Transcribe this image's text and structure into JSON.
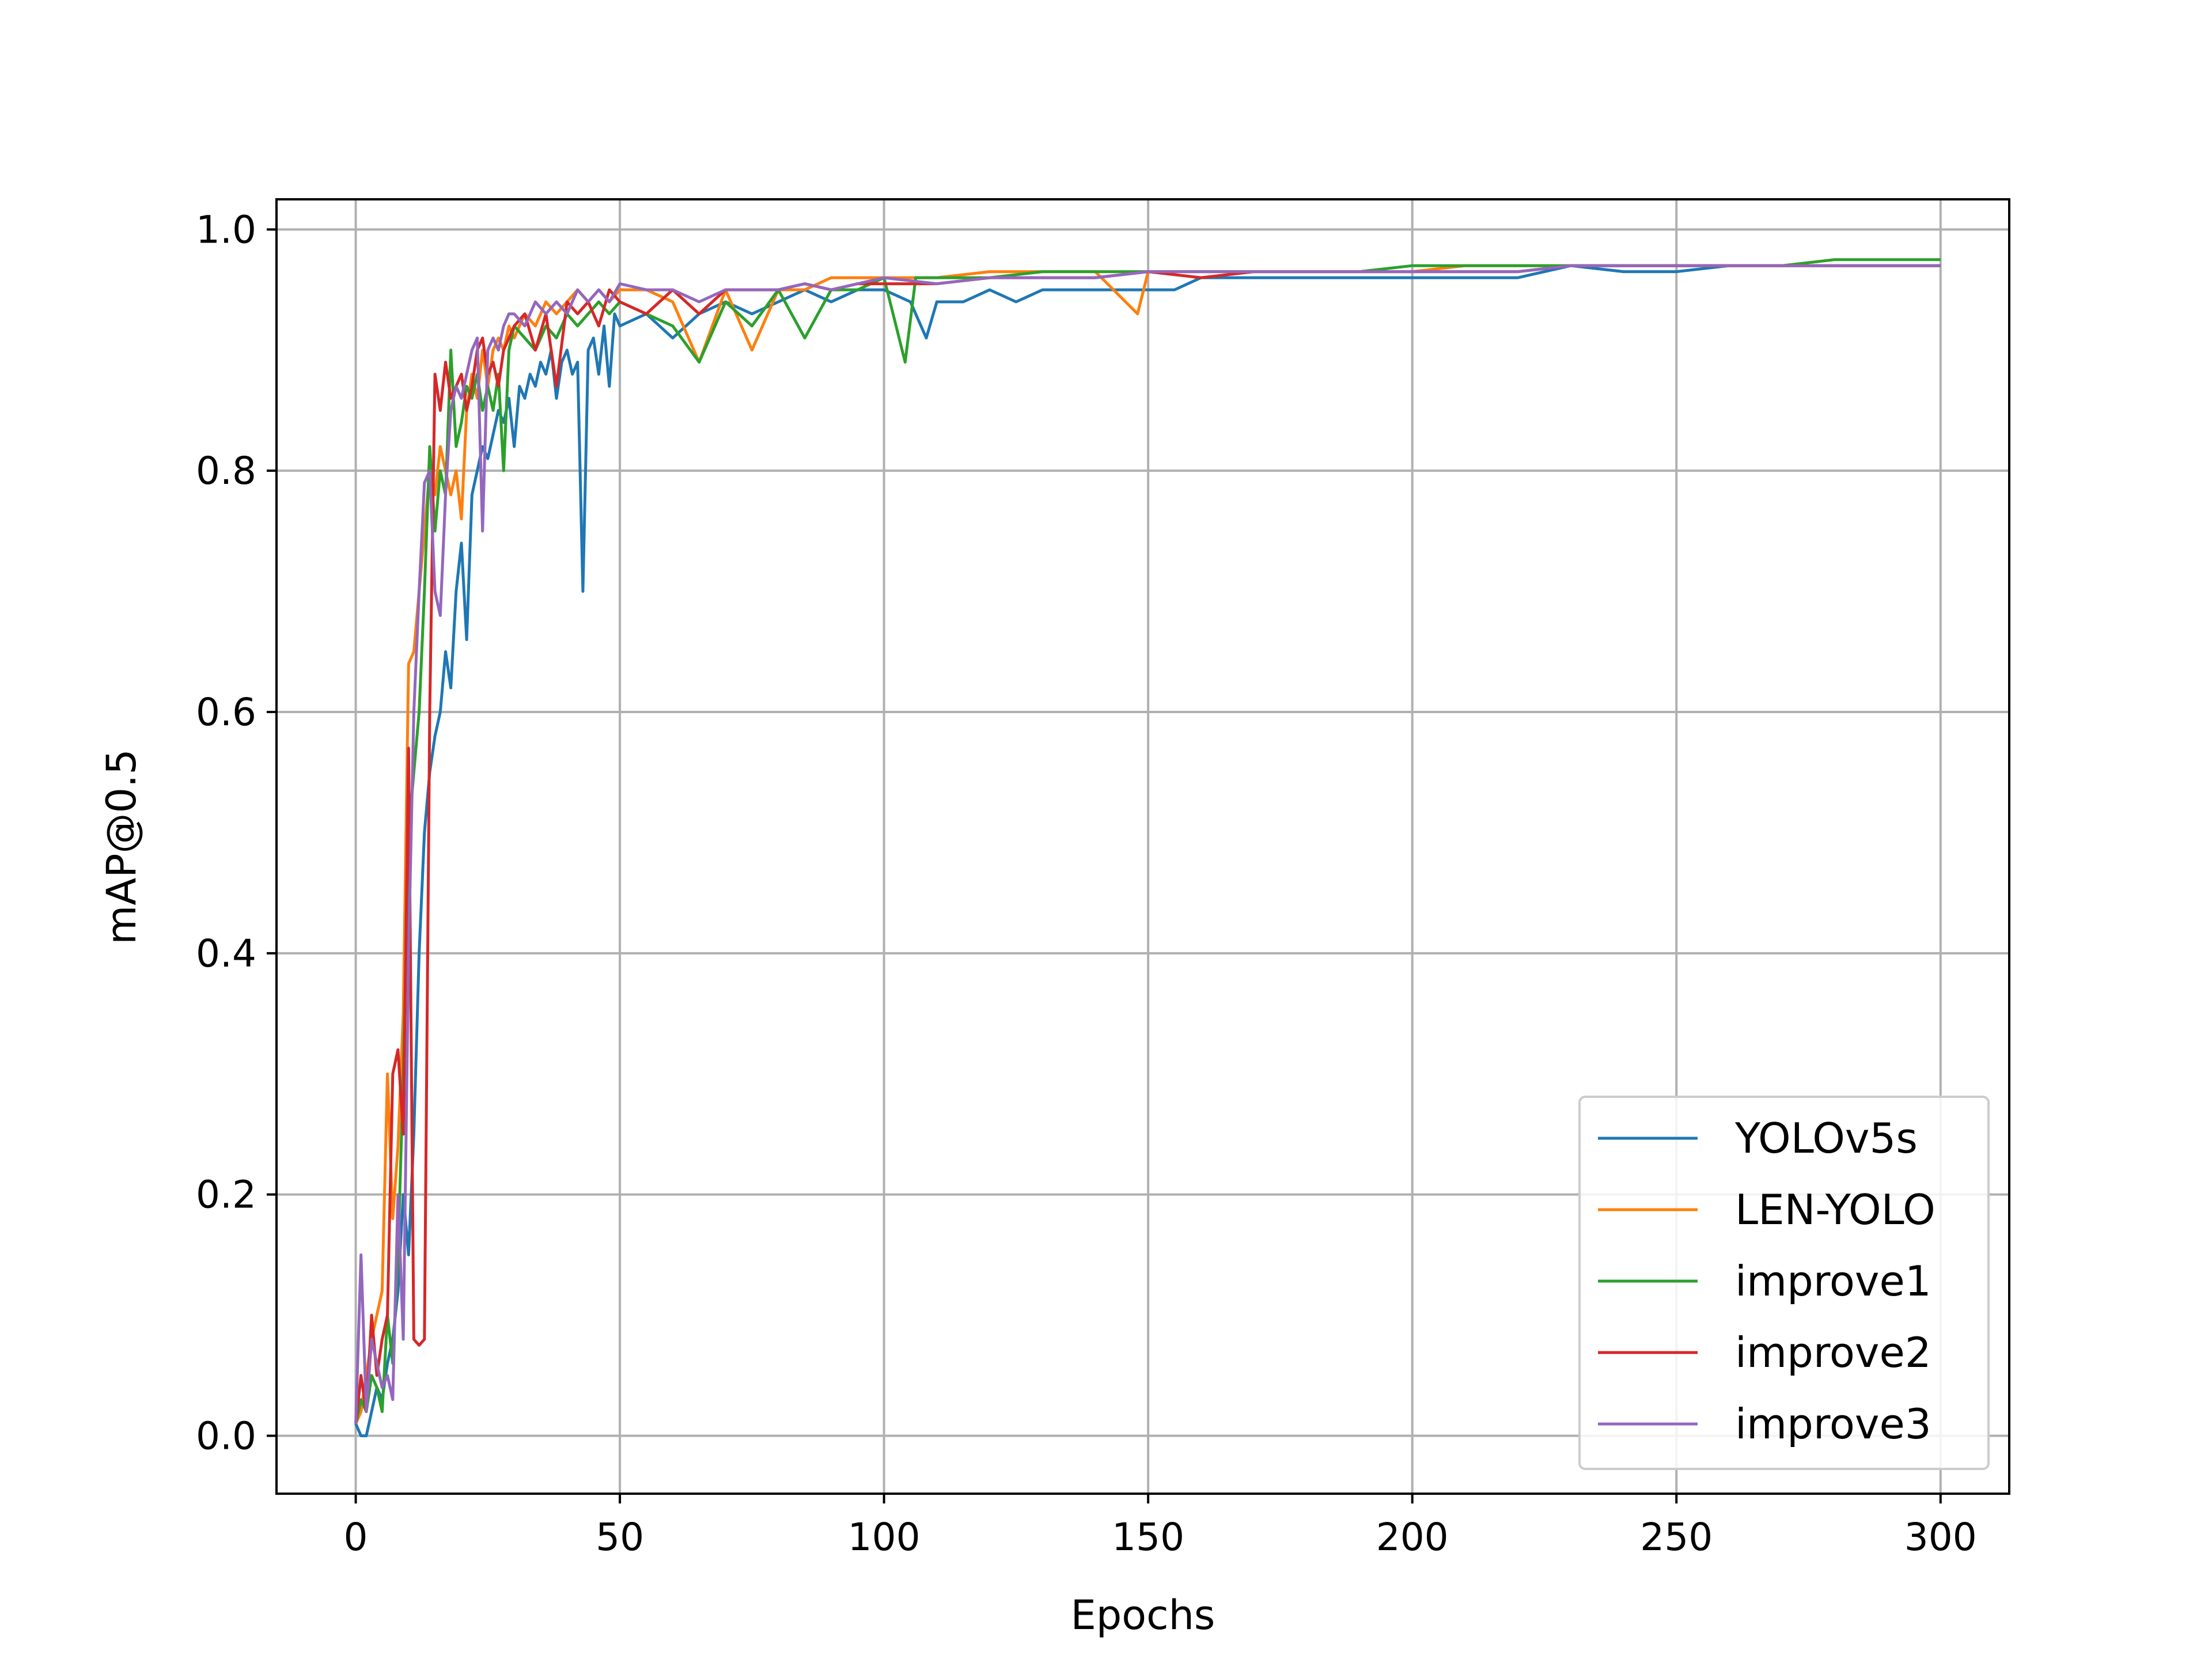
{
  "chart_data": {
    "type": "line",
    "xlabel": "Epochs",
    "ylabel": "mAP@0.5",
    "xlim": [
      -15,
      313
    ],
    "ylim": [
      -0.048,
      1.025
    ],
    "xticks": [
      0,
      50,
      100,
      150,
      200,
      250,
      300
    ],
    "yticks": [
      0.0,
      0.2,
      0.4,
      0.6,
      0.8,
      1.0
    ],
    "xtick_labels": [
      "0",
      "50",
      "100",
      "150",
      "200",
      "250",
      "300"
    ],
    "ytick_labels": [
      "0.0",
      "0.2",
      "0.4",
      "0.6",
      "0.8",
      "1.0"
    ],
    "grid": true,
    "legend_position": "lower-right",
    "series": [
      {
        "name": "YOLOv5s",
        "color": "#1f77b4",
        "x": [
          0,
          1,
          2,
          3,
          4,
          5,
          6,
          7,
          8,
          9,
          10,
          11,
          12,
          13,
          14,
          15,
          16,
          17,
          18,
          19,
          20,
          21,
          22,
          23,
          24,
          25,
          26,
          27,
          28,
          29,
          30,
          31,
          32,
          33,
          34,
          35,
          36,
          37,
          38,
          39,
          40,
          41,
          42,
          43,
          44,
          45,
          46,
          47,
          48,
          49,
          50,
          55,
          60,
          65,
          70,
          75,
          80,
          85,
          90,
          95,
          100,
          105,
          108,
          110,
          115,
          120,
          125,
          130,
          135,
          140,
          145,
          150,
          155,
          160,
          170,
          180,
          190,
          200,
          210,
          220,
          230,
          240,
          250,
          260,
          270,
          280,
          290,
          300
        ],
        "y": [
          0.01,
          0.0,
          0.0,
          0.02,
          0.04,
          0.03,
          0.06,
          0.08,
          0.12,
          0.2,
          0.15,
          0.25,
          0.4,
          0.5,
          0.55,
          0.58,
          0.6,
          0.65,
          0.62,
          0.7,
          0.74,
          0.66,
          0.78,
          0.8,
          0.82,
          0.81,
          0.83,
          0.85,
          0.84,
          0.86,
          0.82,
          0.87,
          0.86,
          0.88,
          0.87,
          0.89,
          0.88,
          0.9,
          0.86,
          0.89,
          0.9,
          0.88,
          0.89,
          0.7,
          0.9,
          0.91,
          0.88,
          0.92,
          0.87,
          0.93,
          0.92,
          0.93,
          0.91,
          0.93,
          0.94,
          0.93,
          0.94,
          0.95,
          0.94,
          0.95,
          0.95,
          0.94,
          0.91,
          0.94,
          0.94,
          0.95,
          0.94,
          0.95,
          0.95,
          0.95,
          0.95,
          0.95,
          0.95,
          0.96,
          0.96,
          0.96,
          0.96,
          0.96,
          0.96,
          0.96,
          0.97,
          0.965,
          0.965,
          0.97,
          0.97,
          0.97,
          0.97,
          0.97
        ]
      },
      {
        "name": "LEN-YOLO",
        "color": "#ff7f0e",
        "x": [
          0,
          1,
          2,
          3,
          4,
          5,
          6,
          7,
          8,
          9,
          10,
          11,
          12,
          13,
          14,
          15,
          16,
          17,
          18,
          19,
          20,
          21,
          22,
          23,
          24,
          25,
          26,
          27,
          28,
          29,
          30,
          32,
          34,
          36,
          38,
          40,
          42,
          44,
          46,
          48,
          50,
          55,
          60,
          65,
          70,
          75,
          80,
          85,
          90,
          95,
          100,
          110,
          120,
          130,
          140,
          148,
          150,
          160,
          170,
          180,
          190,
          200,
          210,
          220,
          230,
          240,
          250,
          260,
          270,
          280,
          290,
          300
        ],
        "y": [
          0.01,
          0.02,
          0.05,
          0.08,
          0.1,
          0.12,
          0.3,
          0.18,
          0.24,
          0.35,
          0.64,
          0.65,
          0.7,
          0.75,
          0.8,
          0.78,
          0.82,
          0.8,
          0.78,
          0.8,
          0.76,
          0.85,
          0.88,
          0.86,
          0.9,
          0.87,
          0.9,
          0.91,
          0.9,
          0.92,
          0.91,
          0.93,
          0.92,
          0.94,
          0.93,
          0.94,
          0.95,
          0.94,
          0.95,
          0.94,
          0.95,
          0.95,
          0.94,
          0.89,
          0.95,
          0.9,
          0.95,
          0.95,
          0.96,
          0.96,
          0.96,
          0.96,
          0.965,
          0.965,
          0.965,
          0.93,
          0.965,
          0.965,
          0.965,
          0.965,
          0.965,
          0.965,
          0.97,
          0.97,
          0.97,
          0.97,
          0.97,
          0.97,
          0.97,
          0.97,
          0.97,
          0.97
        ]
      },
      {
        "name": "improve1",
        "color": "#2ca02c",
        "x": [
          0,
          1,
          2,
          3,
          4,
          5,
          6,
          7,
          8,
          9,
          10,
          11,
          12,
          13,
          14,
          15,
          16,
          17,
          18,
          19,
          20,
          21,
          22,
          23,
          24,
          25,
          26,
          27,
          28,
          29,
          30,
          32,
          34,
          36,
          38,
          40,
          42,
          44,
          46,
          48,
          50,
          55,
          60,
          65,
          70,
          75,
          80,
          85,
          90,
          95,
          100,
          104,
          106,
          110,
          120,
          130,
          140,
          150,
          160,
          170,
          180,
          190,
          200,
          210,
          220,
          230,
          240,
          250,
          260,
          270,
          280,
          290,
          300
        ],
        "y": [
          0.01,
          0.03,
          0.02,
          0.05,
          0.04,
          0.02,
          0.1,
          0.06,
          0.15,
          0.3,
          0.5,
          0.55,
          0.6,
          0.7,
          0.82,
          0.75,
          0.8,
          0.78,
          0.9,
          0.82,
          0.84,
          0.87,
          0.86,
          0.88,
          0.85,
          0.87,
          0.85,
          0.88,
          0.8,
          0.9,
          0.92,
          0.91,
          0.9,
          0.92,
          0.91,
          0.93,
          0.92,
          0.93,
          0.94,
          0.93,
          0.94,
          0.93,
          0.92,
          0.89,
          0.94,
          0.92,
          0.95,
          0.91,
          0.95,
          0.95,
          0.96,
          0.89,
          0.96,
          0.96,
          0.96,
          0.965,
          0.965,
          0.965,
          0.965,
          0.965,
          0.965,
          0.965,
          0.97,
          0.97,
          0.97,
          0.97,
          0.97,
          0.97,
          0.97,
          0.97,
          0.975,
          0.975,
          0.975
        ]
      },
      {
        "name": "improve2",
        "color": "#d62728",
        "x": [
          0,
          1,
          2,
          3,
          4,
          5,
          6,
          7,
          8,
          9,
          10,
          11,
          12,
          13,
          14,
          15,
          16,
          17,
          18,
          19,
          20,
          21,
          22,
          23,
          24,
          25,
          26,
          27,
          28,
          29,
          30,
          32,
          34,
          36,
          38,
          40,
          42,
          44,
          46,
          48,
          50,
          55,
          60,
          65,
          70,
          75,
          80,
          85,
          90,
          95,
          100,
          110,
          120,
          130,
          140,
          150,
          160,
          170,
          180,
          190,
          200,
          210,
          220,
          230,
          240,
          250,
          260,
          270,
          280,
          290,
          300
        ],
        "y": [
          0.01,
          0.05,
          0.02,
          0.1,
          0.05,
          0.08,
          0.1,
          0.3,
          0.32,
          0.25,
          0.57,
          0.08,
          0.075,
          0.08,
          0.6,
          0.88,
          0.85,
          0.89,
          0.86,
          0.87,
          0.88,
          0.85,
          0.87,
          0.9,
          0.91,
          0.88,
          0.89,
          0.87,
          0.9,
          0.91,
          0.92,
          0.93,
          0.9,
          0.93,
          0.87,
          0.94,
          0.93,
          0.94,
          0.92,
          0.95,
          0.94,
          0.93,
          0.95,
          0.93,
          0.95,
          0.95,
          0.95,
          0.955,
          0.95,
          0.955,
          0.955,
          0.955,
          0.96,
          0.96,
          0.96,
          0.965,
          0.96,
          0.965,
          0.965,
          0.965,
          0.965,
          0.965,
          0.965,
          0.97,
          0.97,
          0.97,
          0.97,
          0.97,
          0.97,
          0.97,
          0.97
        ]
      },
      {
        "name": "improve3",
        "color": "#9467bd",
        "x": [
          0,
          1,
          2,
          3,
          4,
          5,
          6,
          7,
          8,
          9,
          10,
          11,
          12,
          13,
          14,
          15,
          16,
          17,
          18,
          19,
          20,
          21,
          22,
          23,
          24,
          25,
          26,
          27,
          28,
          29,
          30,
          32,
          34,
          36,
          38,
          40,
          42,
          44,
          46,
          48,
          50,
          55,
          60,
          65,
          70,
          75,
          80,
          85,
          90,
          95,
          100,
          110,
          120,
          130,
          140,
          150,
          160,
          170,
          180,
          190,
          200,
          210,
          220,
          230,
          240,
          250,
          260,
          270,
          280,
          290,
          300
        ],
        "y": [
          0.01,
          0.15,
          0.02,
          0.08,
          0.06,
          0.04,
          0.05,
          0.03,
          0.2,
          0.08,
          0.4,
          0.6,
          0.7,
          0.79,
          0.8,
          0.7,
          0.68,
          0.78,
          0.85,
          0.87,
          0.86,
          0.88,
          0.9,
          0.91,
          0.75,
          0.9,
          0.91,
          0.9,
          0.92,
          0.93,
          0.93,
          0.92,
          0.94,
          0.93,
          0.94,
          0.93,
          0.95,
          0.94,
          0.95,
          0.94,
          0.955,
          0.95,
          0.95,
          0.94,
          0.95,
          0.95,
          0.95,
          0.955,
          0.95,
          0.955,
          0.96,
          0.955,
          0.96,
          0.96,
          0.96,
          0.965,
          0.965,
          0.965,
          0.965,
          0.965,
          0.965,
          0.965,
          0.965,
          0.97,
          0.97,
          0.97,
          0.97,
          0.97,
          0.97,
          0.97,
          0.97
        ]
      }
    ]
  }
}
